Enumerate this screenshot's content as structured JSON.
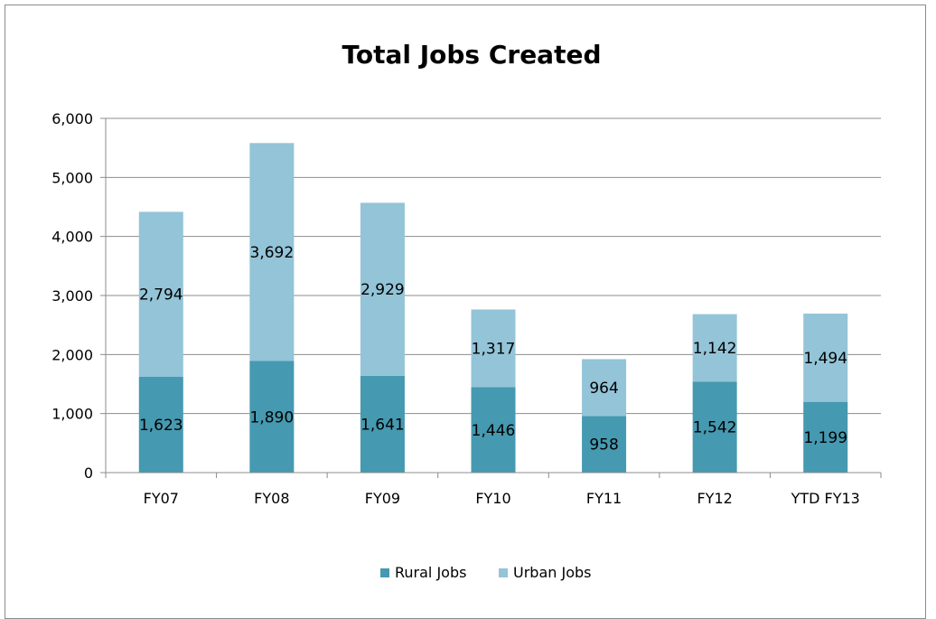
{
  "chart_data": {
    "type": "bar",
    "stacked": true,
    "title": "Total Jobs Created",
    "xlabel": "",
    "ylabel": "",
    "categories": [
      "FY07",
      "FY08",
      "FY09",
      "FY10",
      "FY11",
      "FY12",
      "YTD FY13"
    ],
    "series": [
      {
        "name": "Rural Jobs",
        "values": [
          1623,
          1890,
          1641,
          1446,
          958,
          1542,
          1199
        ],
        "labels": [
          "1,623",
          "1,890",
          "1,641",
          "1,446",
          "958",
          "1,542",
          "1,199"
        ],
        "color": "#4599b0"
      },
      {
        "name": "Urban Jobs",
        "values": [
          2794,
          3692,
          2929,
          1317,
          964,
          1142,
          1494
        ],
        "labels": [
          "2,794",
          "3,692",
          "2,929",
          "1,317",
          "964",
          "1,142",
          "1,494"
        ],
        "color": "#93c4d8"
      }
    ],
    "ylim": [
      0,
      6000
    ],
    "yticks": [
      0,
      1000,
      2000,
      3000,
      4000,
      5000,
      6000
    ],
    "ytick_labels": [
      "0",
      "1,000",
      "2,000",
      "3,000",
      "4,000",
      "5,000",
      "6,000"
    ],
    "grid": true,
    "legend_position": "bottom"
  }
}
